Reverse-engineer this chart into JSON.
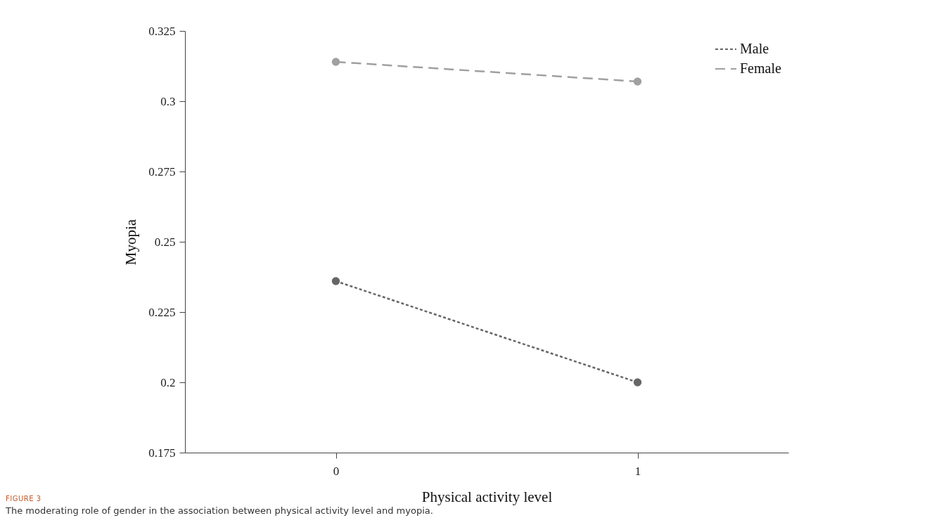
{
  "chart_data": {
    "type": "line",
    "xlabel": "Physical activity level",
    "ylabel": "Myopia",
    "x": [
      0,
      1
    ],
    "xlim": [
      -0.5,
      1.5
    ],
    "xticks": [
      0,
      1
    ],
    "series": [
      {
        "name": "Male",
        "color": "#666666",
        "values": [
          0.236,
          0.2
        ]
      },
      {
        "name": "Female",
        "color": "#a0a0a0",
        "values": [
          0.314,
          0.307
        ]
      }
    ],
    "ylim": [
      0.175,
      0.325
    ],
    "yticks": [
      0.175,
      0.2,
      0.225,
      0.25,
      0.275,
      0.3,
      0.325
    ],
    "grid": false,
    "legend": "top right",
    "marker": "circle",
    "line_style": "dashed",
    "annotations": [
      "FIGURE 3",
      "The moderating role of gender in the association between physical activity level and myopia."
    ]
  }
}
